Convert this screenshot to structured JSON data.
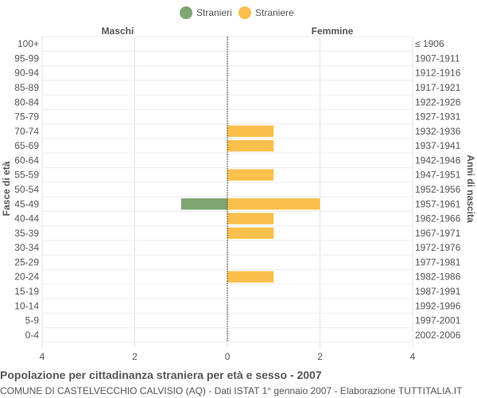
{
  "chart_data": {
    "type": "bar",
    "orientation": "horizontal",
    "title": "Popolazione per cittadinanza straniera per età e sesso - 2007",
    "subtitle": "COMUNE DI CASTELVECCHIO CALVISIO (AQ) - Dati ISTAT 1° gennaio 2007 - Elaborazione TUTTITALIA.IT",
    "left_panel_label": "Maschi",
    "right_panel_label": "Femmine",
    "ylabel_left": "Fasce di età",
    "ylabel_right": "Anni di nascita",
    "categories": [
      "100+",
      "95-99",
      "90-94",
      "85-89",
      "80-84",
      "75-79",
      "70-74",
      "65-69",
      "60-64",
      "55-59",
      "50-54",
      "45-49",
      "40-44",
      "35-39",
      "30-34",
      "25-29",
      "20-24",
      "15-19",
      "10-14",
      "5-9",
      "0-4"
    ],
    "birth_years": [
      "≤ 1906",
      "1907-1911",
      "1912-1916",
      "1917-1921",
      "1922-1926",
      "1927-1931",
      "1932-1936",
      "1937-1941",
      "1942-1946",
      "1947-1951",
      "1952-1956",
      "1957-1961",
      "1962-1966",
      "1967-1971",
      "1972-1976",
      "1977-1981",
      "1982-1986",
      "1987-1991",
      "1992-1996",
      "1997-2001",
      "2002-2006"
    ],
    "series": [
      {
        "name": "Stranieri",
        "color": "#7fa572",
        "values": [
          0,
          0,
          0,
          0,
          0,
          0,
          0,
          0,
          0,
          0,
          0,
          1,
          0,
          0,
          0,
          0,
          0,
          0,
          0,
          0,
          0
        ]
      },
      {
        "name": "Straniere",
        "color": "#fbbf4b",
        "values": [
          0,
          0,
          0,
          0,
          0,
          0,
          1,
          1,
          0,
          1,
          0,
          2,
          1,
          1,
          0,
          0,
          1,
          0,
          0,
          0,
          0
        ]
      }
    ],
    "xlim": [
      -4,
      4
    ],
    "x_ticks": [
      {
        "value": -4,
        "label": "4"
      },
      {
        "value": -2,
        "label": "2"
      },
      {
        "value": 0,
        "label": "0"
      },
      {
        "value": 2,
        "label": "2"
      },
      {
        "value": 4,
        "label": "4"
      }
    ],
    "grid": true,
    "legend_position": "top-center"
  }
}
